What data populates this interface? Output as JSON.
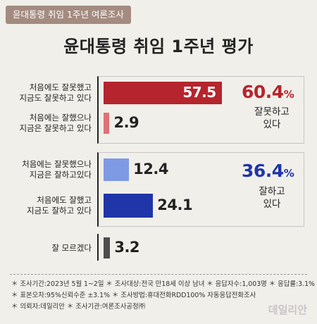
{
  "header": {
    "tag": "윤대통령 취임 1주년 여론조사",
    "title": "윤대통령 취임 1주년 평가"
  },
  "chart_data": {
    "type": "bar",
    "orientation": "horizontal",
    "categories": [
      "처음에도 잘못했고 지금도 잘못하고 있다",
      "처음에는 잘했으나 지금은 잘못하고 있다",
      "처음에는 잘못했으나 지금은 잘하고있다",
      "처음에도 잘했고 지금도 잘하고 있다",
      "잘 모르겠다"
    ],
    "labels": [
      [
        "처음에도 잘못했고",
        "지금도 잘못하고 있다"
      ],
      [
        "처음에는 잘했으나",
        "지금은 잘못하고 있다"
      ],
      [
        "처음에는 잘못했으나",
        "지금은 잘하고있다"
      ],
      [
        "처음에도 잘했고",
        "지금도 잘하고 있다"
      ],
      [
        "잘 모르겠다"
      ]
    ],
    "values": [
      57.5,
      2.9,
      12.4,
      24.1,
      3.2
    ],
    "value_labels": [
      "57.5",
      "2.9",
      "12.4",
      "24.1",
      "3.2"
    ],
    "colors": [
      "#b5252d",
      "#e07174",
      "#7e9ae4",
      "#1f35a8",
      "#4d4d4d"
    ],
    "xlim": [
      0,
      60
    ],
    "groups": [
      {
        "value": "60.4",
        "unit": "%",
        "label": [
          "잘못하고",
          "있다"
        ],
        "color": "#b5252d"
      },
      {
        "value": "36.4",
        "unit": "%",
        "label": [
          "잘하고",
          "있다"
        ],
        "color": "#1f35a8"
      }
    ]
  },
  "notes": [
    "＊ 조사기간:2023년 5월 1~2일  ＊ 조사대상:전국 만18세 이상 남녀  ＊ 응답자수:1,003명  ＊ 응답률:3.1%",
    "＊ 표본오차:95%신뢰수준 ±3.1%  ＊ 조사방법:휴대전화RDD100% 자동응답전화조사",
    "＊ 의뢰자:데일리안  ＊ 조사기관:여론조사공정㈜"
  ],
  "brand": {
    "logo": "데일리안"
  }
}
